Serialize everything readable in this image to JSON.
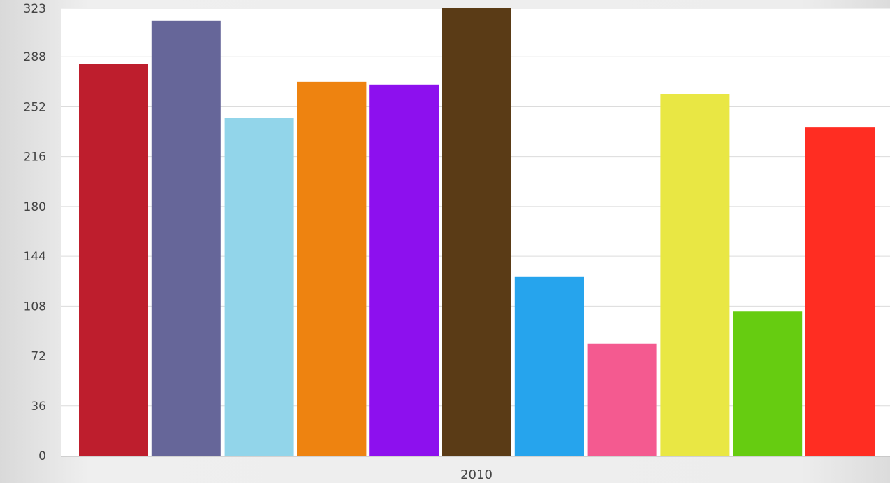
{
  "chart_data": {
    "type": "bar",
    "categories": [
      "2010"
    ],
    "series": [
      {
        "values": [
          283
        ],
        "color": "#be1e2d"
      },
      {
        "values": [
          314
        ],
        "color": "#666699"
      },
      {
        "values": [
          244
        ],
        "color": "#92d5ea"
      },
      {
        "values": [
          270
        ],
        "color": "#ee8310"
      },
      {
        "values": [
          268
        ],
        "color": "#8d10ee"
      },
      {
        "values": [
          323
        ],
        "color": "#5a3b16"
      },
      {
        "values": [
          129
        ],
        "color": "#26a4ed"
      },
      {
        "values": [
          81
        ],
        "color": "#f45a90"
      },
      {
        "values": [
          261
        ],
        "color": "#e9e744"
      },
      {
        "values": [
          104
        ],
        "color": "#66cc11"
      },
      {
        "values": [
          237
        ],
        "color": "#ff2d22"
      }
    ],
    "yticks": [
      0,
      36,
      72,
      108,
      144,
      180,
      216,
      252,
      288,
      323
    ],
    "ylim": [
      0,
      323
    ],
    "title": "",
    "xlabel": "",
    "ylabel": "",
    "grid": true,
    "legend": "none"
  }
}
